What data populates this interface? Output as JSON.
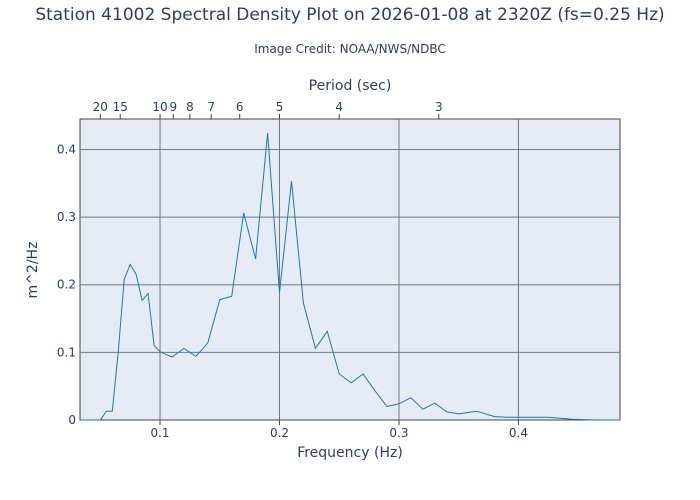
{
  "chart_data": {
    "type": "line",
    "title": "Station 41002 Spectral Density Plot  on 2026-01-08 at 2320Z (fs=0.25 Hz)",
    "subtitle": "Image Credit: NOAA/NWS/NDBC",
    "xlabel": "Frequency (Hz)",
    "ylabel": "m^2/Hz",
    "x2label": "Period (sec)",
    "xlim": [
      0.033,
      0.485
    ],
    "ylim": [
      0,
      0.445
    ],
    "xticks": [
      {
        "value": 0.1,
        "label": "0.1"
      },
      {
        "value": 0.2,
        "label": "0.2"
      },
      {
        "value": 0.3,
        "label": "0.3"
      },
      {
        "value": 0.4,
        "label": "0.4"
      }
    ],
    "yticks": [
      {
        "value": 0,
        "label": "0"
      },
      {
        "value": 0.1,
        "label": "0.1"
      },
      {
        "value": 0.2,
        "label": "0.2"
      },
      {
        "value": 0.3,
        "label": "0.3"
      },
      {
        "value": 0.4,
        "label": "0.4"
      }
    ],
    "x2ticks": [
      {
        "period": 20,
        "label": "20"
      },
      {
        "period": 15,
        "label": "15"
      },
      {
        "period": 10,
        "label": "10"
      },
      {
        "period": 9,
        "label": "9"
      },
      {
        "period": 8,
        "label": "8"
      },
      {
        "period": 7,
        "label": "7"
      },
      {
        "period": 6,
        "label": "6"
      },
      {
        "period": 5,
        "label": "5"
      },
      {
        "period": 4,
        "label": "4"
      },
      {
        "period": 3,
        "label": "3"
      }
    ],
    "grid": true,
    "colors": {
      "line": "#1f77b4",
      "plot_bg": "#e5ecf6",
      "grid": "#777777"
    },
    "series": [
      {
        "x": [
          0.033,
          0.04,
          0.045,
          0.05,
          0.055,
          0.06,
          0.065,
          0.07,
          0.075,
          0.08,
          0.085,
          0.09,
          0.095,
          0.1,
          0.11,
          0.12,
          0.13,
          0.14,
          0.15,
          0.16,
          0.17,
          0.18,
          0.19,
          0.2,
          0.21,
          0.22,
          0.23,
          0.24,
          0.25,
          0.26,
          0.27,
          0.28,
          0.29,
          0.3,
          0.31,
          0.32,
          0.33,
          0.34,
          0.35,
          0.365,
          0.38,
          0.39,
          0.4,
          0.41,
          0.425,
          0.445,
          0.465,
          0.485
        ],
        "y": [
          0,
          0,
          0,
          0,
          0.013,
          0.013,
          0.1,
          0.208,
          0.23,
          0.215,
          0.177,
          0.187,
          0.11,
          0.101,
          0.093,
          0.106,
          0.094,
          0.114,
          0.178,
          0.183,
          0.306,
          0.238,
          0.424,
          0.188,
          0.353,
          0.173,
          0.106,
          0.131,
          0.068,
          0.055,
          0.068,
          0.043,
          0.02,
          0.024,
          0.033,
          0.016,
          0.025,
          0.012,
          0.009,
          0.013,
          0.005,
          0.004,
          0.004,
          0.004,
          0.004,
          0.001,
          0,
          0
        ]
      }
    ]
  }
}
